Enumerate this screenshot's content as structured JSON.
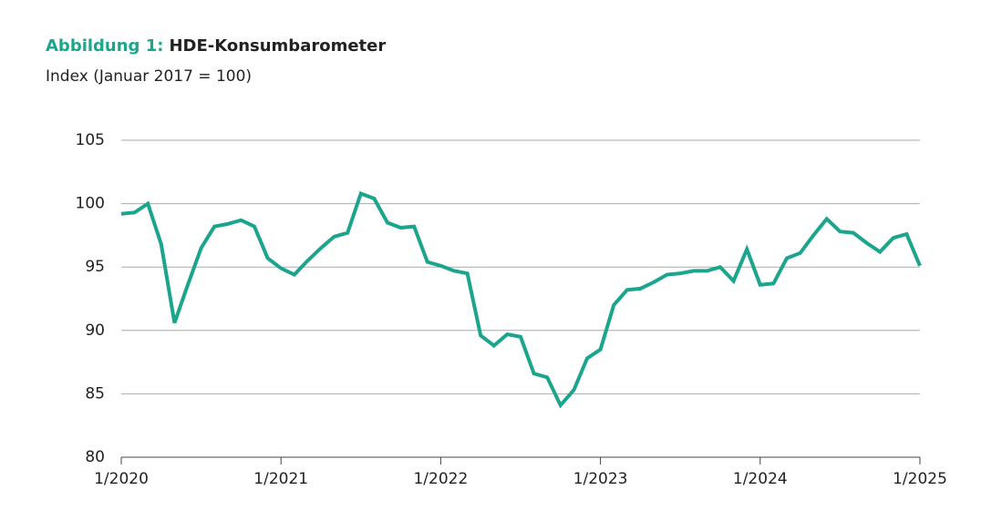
{
  "chart_data": {
    "type": "line",
    "title_prefix": "Abbildung 1:",
    "title": "HDE-Konsumbarometer",
    "subtitle": "Index (Januar 2017 = 100)",
    "categories": [
      "1/2020",
      null,
      null,
      null,
      null,
      null,
      null,
      null,
      null,
      null,
      null,
      null,
      "1/2021",
      null,
      null,
      null,
      null,
      null,
      null,
      null,
      null,
      null,
      null,
      null,
      "1/2022",
      null,
      null,
      null,
      null,
      null,
      null,
      null,
      null,
      null,
      null,
      null,
      "1/2023",
      null,
      null,
      null,
      null,
      null,
      null,
      null,
      null,
      null,
      null,
      null,
      "1/2024",
      null,
      null,
      null,
      null,
      null,
      null,
      null,
      null,
      null,
      null,
      null,
      "1/2025"
    ],
    "values": [
      99.2,
      99.3,
      100.0,
      96.8,
      90.6,
      93.6,
      96.5,
      98.2,
      98.4,
      98.7,
      98.2,
      95.7,
      94.9,
      94.4,
      95.5,
      96.5,
      97.4,
      97.7,
      100.8,
      100.4,
      98.5,
      98.1,
      98.2,
      95.4,
      95.1,
      94.7,
      94.5,
      89.6,
      88.8,
      89.7,
      89.5,
      86.6,
      86.3,
      84.1,
      85.3,
      87.8,
      88.5,
      92.0,
      93.2,
      93.3,
      93.8,
      94.4,
      94.5,
      94.7,
      94.7,
      95.0,
      93.9,
      96.4,
      93.6,
      93.7,
      95.7,
      96.1,
      97.5,
      98.8,
      97.8,
      97.7,
      96.9,
      96.2,
      97.3,
      97.6,
      95.1
    ],
    "color": "#1aa58c",
    "title_prefix_color": "#1aa58c",
    "ylim": [
      80,
      105
    ],
    "yticks": [
      80,
      85,
      90,
      95,
      100,
      105
    ],
    "grid": true
  }
}
